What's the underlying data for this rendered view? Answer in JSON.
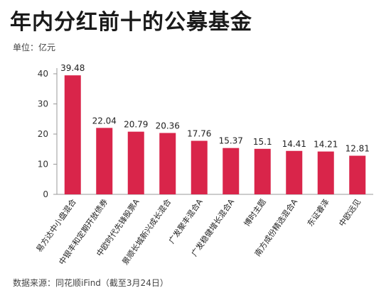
{
  "header": {
    "title": "年内分红前十的公募基金",
    "unit": "单位：亿元"
  },
  "footer": {
    "source": "数据来源：同花顺iFind（截至3月24日）"
  },
  "colors": {
    "bar": "#d9254a",
    "axis": "#999999"
  },
  "chart_data": {
    "type": "bar",
    "title": "年内分红前十的公募基金",
    "ylabel": "单位：亿元",
    "xlabel": "",
    "ylim": [
      0,
      40
    ],
    "yticks": [
      0,
      10,
      20,
      30,
      40
    ],
    "grid": false,
    "categories": [
      "易方达中小盘混合",
      "中银丰和定期开放债券",
      "中欧时代先锋股票A",
      "景顺长城新兴成长混合",
      "广发聚丰混合A",
      "广发稳健增长混合A",
      "博时主题",
      "南方成份精选混合A",
      "东证睿泽",
      "中欧远见"
    ],
    "values": [
      39.48,
      22.04,
      20.79,
      20.36,
      17.76,
      15.37,
      15.1,
      14.41,
      14.21,
      12.81
    ],
    "data_labels": [
      "39.48",
      "22.04",
      "20.79",
      "20.36",
      "17.76",
      "15.37",
      "15.1",
      "14.41",
      "14.21",
      "12.81"
    ]
  }
}
